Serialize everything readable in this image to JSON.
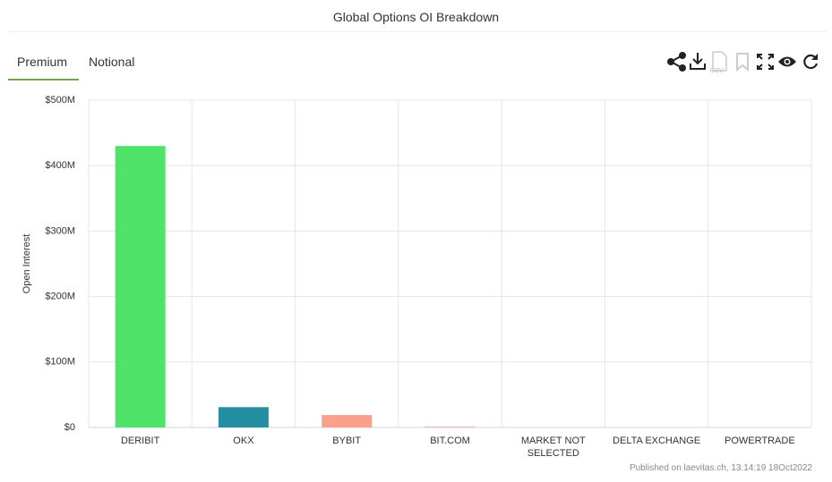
{
  "chart_data": {
    "type": "bar",
    "title": "Global Options OI Breakdown",
    "ylabel": "Open Interest",
    "categories": [
      "DERIBIT",
      "OKX",
      "BYBIT",
      "BIT.COM",
      "MARKET NOT SELECTED",
      "DELTA EXCHANGE",
      "POWERTRADE"
    ],
    "values": [
      430000000,
      31000000,
      19000000,
      1000000,
      0,
      0,
      0
    ],
    "colors": [
      "#4fe36a",
      "#238e9f",
      "#fba08a",
      "#e896a0",
      "#9aa0c8",
      "#c8a0e0",
      "#e0c080"
    ],
    "ylim": [
      0,
      500000000
    ],
    "yticks": [
      {
        "value": 0,
        "label": "$0"
      },
      {
        "value": 100000000,
        "label": "$100M"
      },
      {
        "value": 200000000,
        "label": "$200M"
      },
      {
        "value": 300000000,
        "label": "$300M"
      },
      {
        "value": 400000000,
        "label": "$400M"
      },
      {
        "value": 500000000,
        "label": "$500M"
      }
    ],
    "grid": true
  },
  "tabs": [
    "Premium",
    "Notional"
  ],
  "toolbar": {
    "csv": "CSV"
  },
  "footer": "Published on laevitas.ch, 13:14:19 18Oct2022"
}
